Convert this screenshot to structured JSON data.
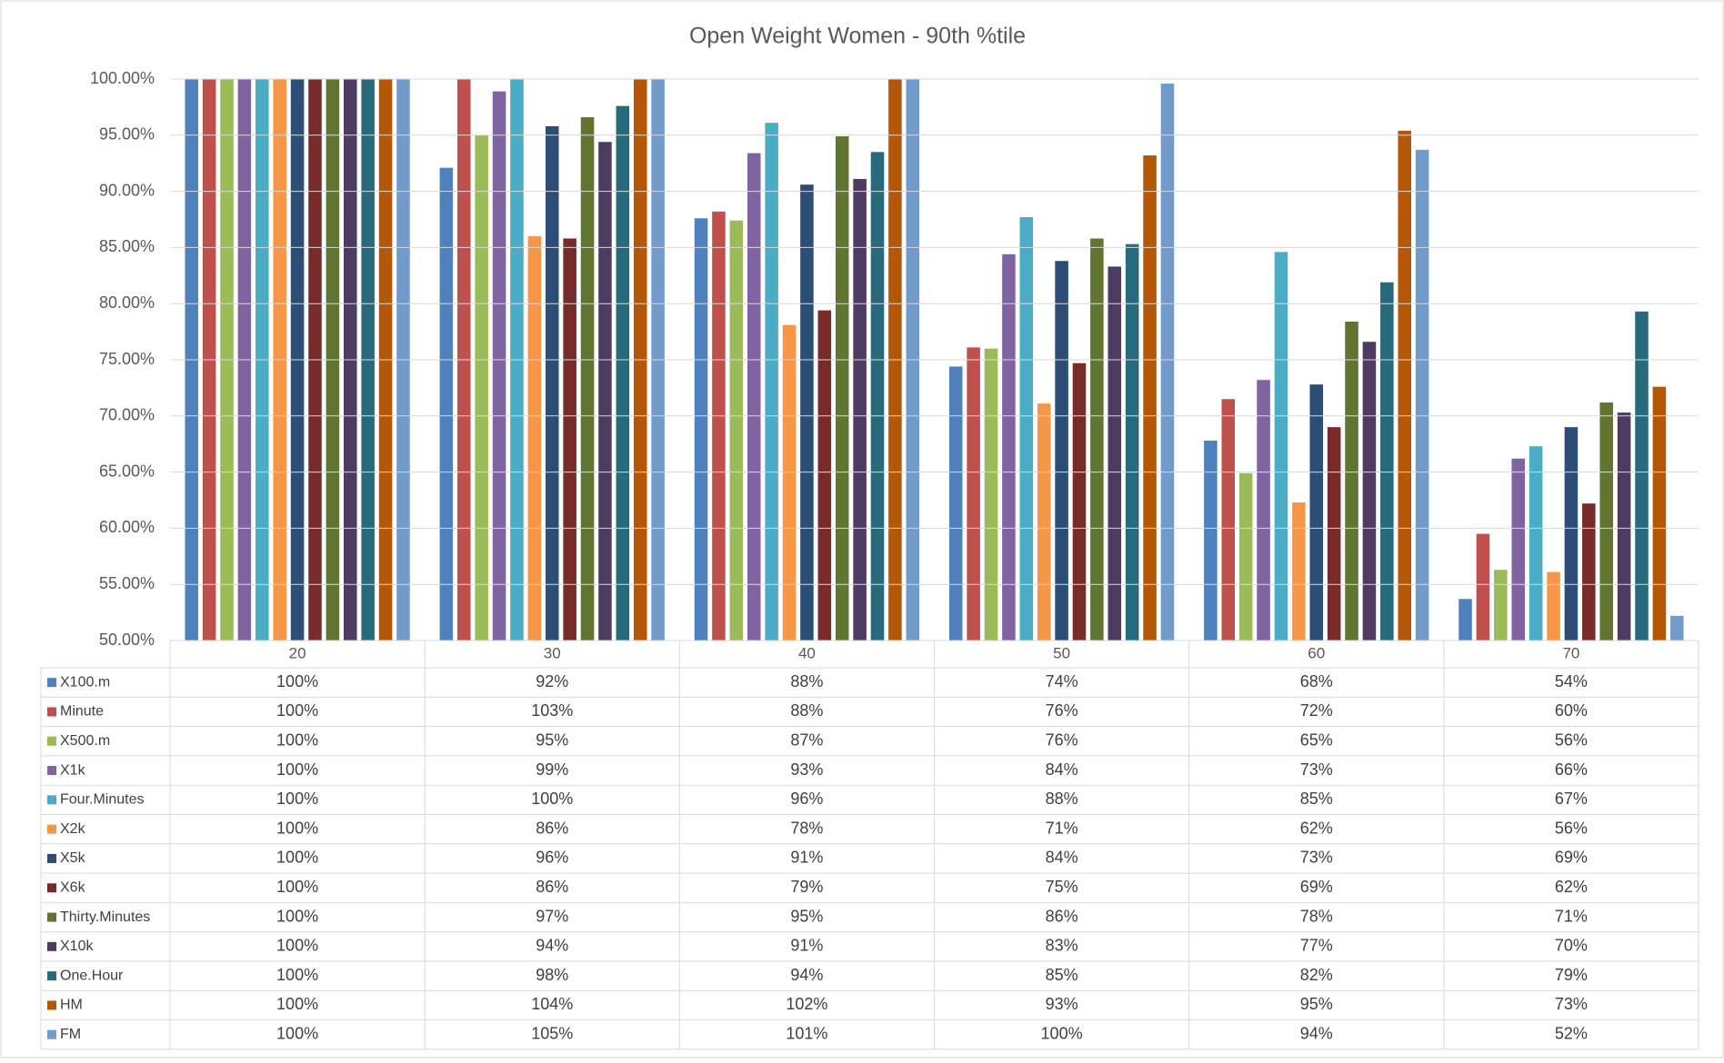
{
  "chart_data": {
    "type": "bar",
    "title": "Open Weight Women - 90th %tile",
    "categories": [
      "20",
      "30",
      "40",
      "50",
      "60",
      "70"
    ],
    "ylim": [
      50,
      100
    ],
    "yticks": [
      {
        "value": 50,
        "label": "50.00%"
      },
      {
        "value": 55,
        "label": "55.00%"
      },
      {
        "value": 60,
        "label": "60.00%"
      },
      {
        "value": 65,
        "label": "65.00%"
      },
      {
        "value": 70,
        "label": "70.00%"
      },
      {
        "value": 75,
        "label": "75.00%"
      },
      {
        "value": 80,
        "label": "80.00%"
      },
      {
        "value": 85,
        "label": "85.00%"
      },
      {
        "value": 90,
        "label": "90.00%"
      },
      {
        "value": 95,
        "label": "95.00%"
      },
      {
        "value": 100,
        "label": "100.00%"
      }
    ],
    "grid": true,
    "series": [
      {
        "name": "X100.m",
        "color": "#4f81bd",
        "values": [
          100,
          92.1,
          87.6,
          74.4,
          67.8,
          53.7
        ],
        "value_labels": [
          "100%",
          "92%",
          "88%",
          "74%",
          "68%",
          "54%"
        ]
      },
      {
        "name": "Minute",
        "color": "#c0504d",
        "values": [
          100,
          103,
          88.2,
          76.1,
          71.5,
          59.5
        ],
        "value_labels": [
          "100%",
          "103%",
          "88%",
          "76%",
          "72%",
          "60%"
        ]
      },
      {
        "name": "X500.m",
        "color": "#9bbb59",
        "values": [
          100,
          95.0,
          87.4,
          76.0,
          64.9,
          56.3
        ],
        "value_labels": [
          "100%",
          "95%",
          "87%",
          "76%",
          "65%",
          "56%"
        ]
      },
      {
        "name": "X1k",
        "color": "#8064a2",
        "values": [
          100,
          98.9,
          93.4,
          84.4,
          73.2,
          66.2
        ],
        "value_labels": [
          "100%",
          "99%",
          "93%",
          "84%",
          "73%",
          "66%"
        ]
      },
      {
        "name": "Four.Minutes",
        "color": "#4bacc6",
        "values": [
          100,
          100,
          96.1,
          87.7,
          84.6,
          67.3
        ],
        "value_labels": [
          "100%",
          "100%",
          "96%",
          "88%",
          "85%",
          "67%"
        ]
      },
      {
        "name": "X2k",
        "color": "#f79646",
        "values": [
          100,
          86.0,
          78.1,
          71.1,
          62.3,
          56.1
        ],
        "value_labels": [
          "100%",
          "86%",
          "78%",
          "71%",
          "62%",
          "56%"
        ]
      },
      {
        "name": "X5k",
        "color": "#2c4d75",
        "values": [
          100,
          95.8,
          90.6,
          83.8,
          72.8,
          69.0
        ],
        "value_labels": [
          "100%",
          "96%",
          "91%",
          "84%",
          "73%",
          "69%"
        ]
      },
      {
        "name": "X6k",
        "color": "#772c2a",
        "values": [
          100,
          85.8,
          79.4,
          74.7,
          69.0,
          62.2
        ],
        "value_labels": [
          "100%",
          "86%",
          "79%",
          "75%",
          "69%",
          "62%"
        ]
      },
      {
        "name": "Thirty.Minutes",
        "color": "#5f7530",
        "values": [
          100,
          96.6,
          94.9,
          85.8,
          78.4,
          71.2
        ],
        "value_labels": [
          "100%",
          "97%",
          "95%",
          "86%",
          "78%",
          "71%"
        ]
      },
      {
        "name": "X10k",
        "color": "#4d3b62",
        "values": [
          100,
          94.4,
          91.1,
          83.3,
          76.6,
          70.3
        ],
        "value_labels": [
          "100%",
          "94%",
          "91%",
          "83%",
          "77%",
          "70%"
        ]
      },
      {
        "name": "One.Hour",
        "color": "#276a7c",
        "values": [
          100,
          97.6,
          93.5,
          85.3,
          81.9,
          79.3
        ],
        "value_labels": [
          "100%",
          "98%",
          "94%",
          "85%",
          "82%",
          "79%"
        ]
      },
      {
        "name": "HM",
        "color": "#b65708",
        "values": [
          100,
          104,
          102,
          93.2,
          95.4,
          72.6
        ],
        "value_labels": [
          "100%",
          "104%",
          "102%",
          "93%",
          "95%",
          "73%"
        ]
      },
      {
        "name": "FM",
        "color": "#729aca",
        "values": [
          100,
          105,
          101,
          99.6,
          93.7,
          52.2
        ],
        "value_labels": [
          "100%",
          "105%",
          "101%",
          "100%",
          "94%",
          "52%"
        ]
      }
    ]
  }
}
